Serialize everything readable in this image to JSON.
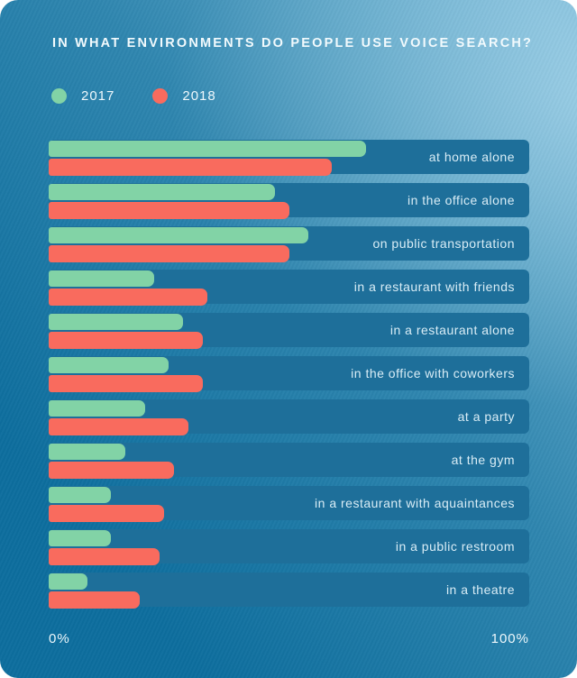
{
  "title": "IN WHAT ENVIRONMENTS DO PEOPLE USE VOICE SEARCH?",
  "legend": [
    {
      "label": "2017",
      "color": "#82d3a6"
    },
    {
      "label": "2018",
      "color": "#f96b5e"
    }
  ],
  "axis": {
    "min_label": "0%",
    "max_label": "100%"
  },
  "colors": {
    "background_dark": "#0d6e9e",
    "background_light": "#6fb3d3",
    "row_background": "#1e6f9a",
    "series_2017": "#82d3a6",
    "series_2018": "#f96b5e",
    "text": "#f2fafd"
  },
  "chart_data": {
    "type": "bar",
    "orientation": "horizontal",
    "title": "IN WHAT ENVIRONMENTS DO PEOPLE USE VOICE SEARCH?",
    "categories": [
      "at home alone",
      "in the office alone",
      "on public transportation",
      "in a restaurant with friends",
      "in a restaurant alone",
      "in the office with coworkers",
      "at a party",
      "at the gym",
      "in a restaurant with aquaintances",
      "in a public restroom",
      "in a theatre"
    ],
    "series": [
      {
        "name": "2017",
        "color": "#82d3a6",
        "values": [
          66,
          47,
          54,
          22,
          28,
          25,
          20,
          16,
          13,
          13,
          8
        ]
      },
      {
        "name": "2018",
        "color": "#f96b5e",
        "values": [
          59,
          50,
          50,
          33,
          32,
          32,
          29,
          26,
          24,
          23,
          19
        ]
      }
    ],
    "value_unit": "%",
    "xlim": [
      0,
      100
    ],
    "x_tick_labels": [
      "0%",
      "100%"
    ],
    "grid": false,
    "legend_position": "top-left"
  }
}
